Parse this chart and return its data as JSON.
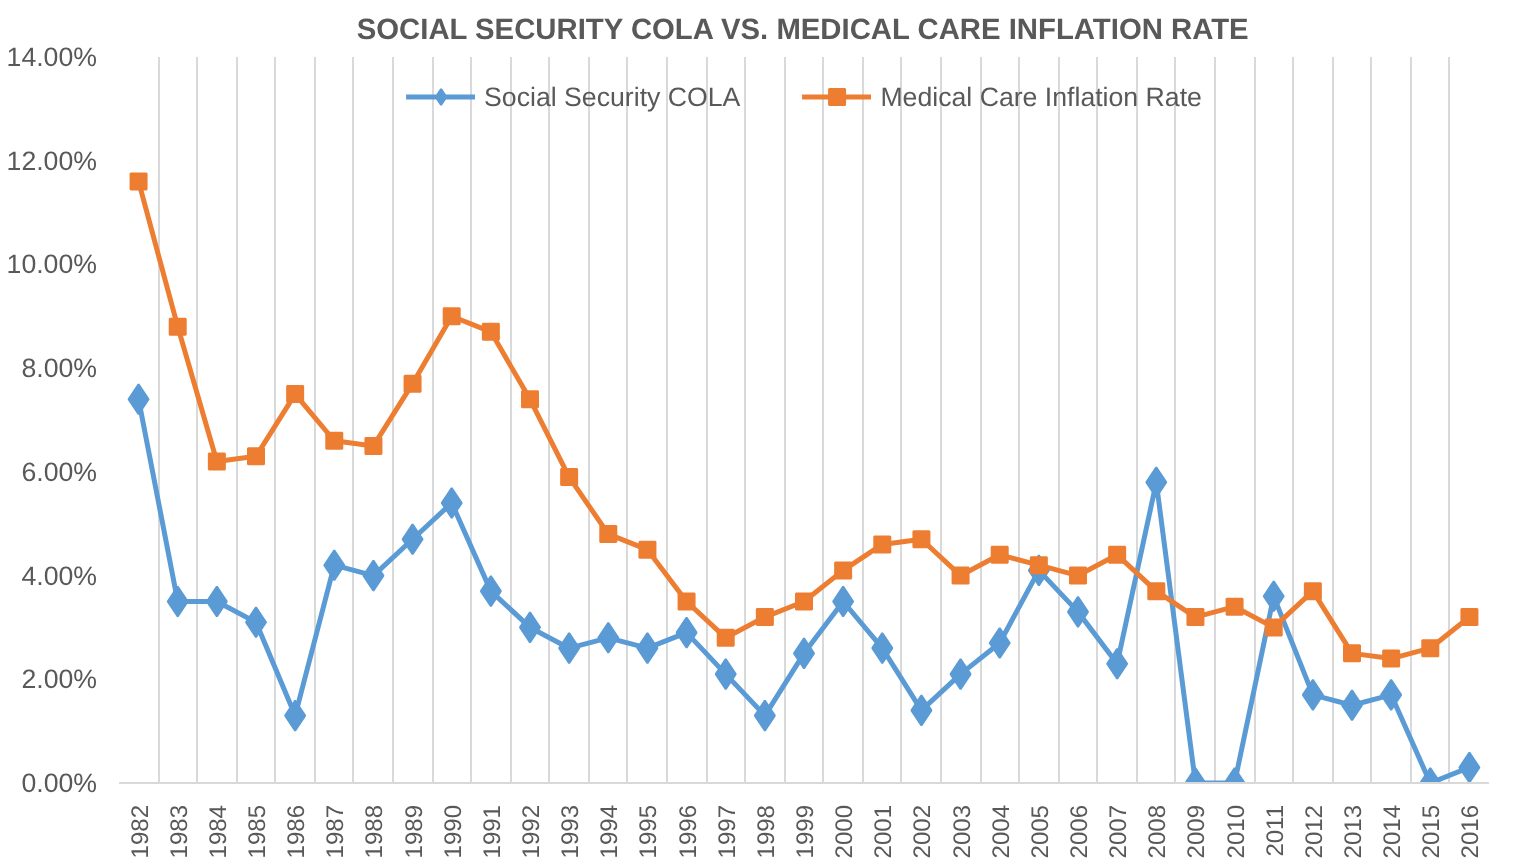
{
  "chart_data": {
    "type": "line",
    "title": "SOCIAL SECURITY COLA VS. MEDICAL CARE INFLATION RATE",
    "categories": [
      "1982",
      "1983",
      "1984",
      "1985",
      "1986",
      "1987",
      "1988",
      "1989",
      "1990",
      "1991",
      "1992",
      "1993",
      "1994",
      "1995",
      "1996",
      "1997",
      "1998",
      "1999",
      "2000",
      "2001",
      "2002",
      "2003",
      "2004",
      "2005",
      "2006",
      "2007",
      "2008",
      "2009",
      "2010",
      "2011",
      "2012",
      "2013",
      "2014",
      "2015",
      "2016"
    ],
    "series": [
      {
        "name": "Social Security COLA",
        "color": "#5b9bd5",
        "marker": "diamond",
        "values": [
          7.4,
          3.5,
          3.5,
          3.1,
          1.3,
          4.2,
          4.0,
          4.7,
          5.4,
          3.7,
          3.0,
          2.6,
          2.8,
          2.6,
          2.9,
          2.1,
          1.3,
          2.5,
          3.5,
          2.6,
          1.4,
          2.1,
          2.7,
          4.1,
          3.3,
          2.3,
          5.8,
          0.0,
          0.0,
          3.6,
          1.7,
          1.5,
          1.7,
          0.0,
          0.3
        ]
      },
      {
        "name": "Medical Care Inflation Rate",
        "color": "#ed7d31",
        "marker": "square",
        "values": [
          11.6,
          8.8,
          6.2,
          6.3,
          7.5,
          6.6,
          6.5,
          7.7,
          9.0,
          8.7,
          7.4,
          5.9,
          4.8,
          4.5,
          3.5,
          2.8,
          3.2,
          3.5,
          4.1,
          4.6,
          4.7,
          4.0,
          4.4,
          4.2,
          4.0,
          4.4,
          3.7,
          3.2,
          3.4,
          3.0,
          3.7,
          2.5,
          2.4,
          2.6,
          3.2
        ]
      }
    ],
    "ylim": [
      0,
      14
    ],
    "yticks": [
      {
        "value": 0,
        "label": "0.00%"
      },
      {
        "value": 2,
        "label": "2.00%"
      },
      {
        "value": 4,
        "label": "4.00%"
      },
      {
        "value": 6,
        "label": "6.00%"
      },
      {
        "value": 8,
        "label": "8.00%"
      },
      {
        "value": 10,
        "label": "10.00%"
      },
      {
        "value": 12,
        "label": "12.00%"
      },
      {
        "value": 14,
        "label": "14.00%"
      }
    ],
    "grid": "x",
    "legend": "top",
    "line_style": "solid"
  }
}
